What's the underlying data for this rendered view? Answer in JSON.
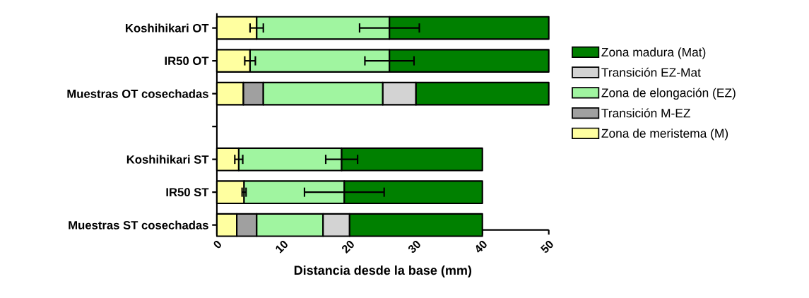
{
  "chart_data": {
    "type": "bar",
    "orientation": "horizontal",
    "stacked": true,
    "categories": [
      "Koshihikari OT",
      "IR50 OT",
      "Muestras OT cosechadas",
      null,
      "Koshihikari ST",
      "IR50 ST",
      "Muestras ST cosechadas"
    ],
    "series": [
      {
        "name": "Zona de meristema (M)",
        "color": "#ffffa0",
        "values": [
          6,
          5,
          4,
          null,
          3.3,
          4.1,
          3
        ],
        "errors": [
          1,
          0.8,
          null,
          null,
          0.6,
          0.3,
          null
        ]
      },
      {
        "name": "Transición M-EZ",
        "color": "#a0a0a0",
        "values": [
          null,
          null,
          3,
          null,
          null,
          null,
          3
        ]
      },
      {
        "name": "Zona de elongación (EZ)",
        "color": "#a0f5a0",
        "values": [
          20,
          21,
          18,
          null,
          15.5,
          15.1,
          10
        ],
        "errors": [
          4.5,
          3.7,
          null,
          null,
          2.4,
          6,
          null
        ]
      },
      {
        "name": "Transición EZ-Mat",
        "color": "#d3d3d3",
        "values": [
          null,
          null,
          5,
          null,
          null,
          null,
          4
        ]
      },
      {
        "name": "Zona madura (Mat)",
        "color": "#008000",
        "values": [
          24,
          24,
          20,
          null,
          21.2,
          20.8,
          20
        ]
      }
    ],
    "xlim": [
      0,
      50
    ],
    "xticks": [
      0,
      10,
      20,
      30,
      40,
      50
    ],
    "xlabel": "Distancia desde la base (mm)",
    "legend": "right"
  }
}
